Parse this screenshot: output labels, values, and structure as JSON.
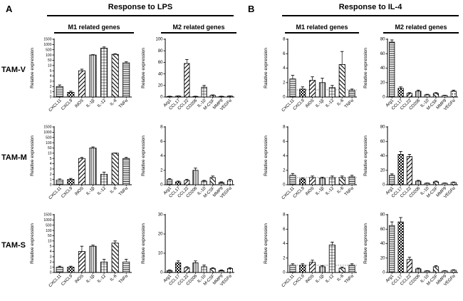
{
  "figure": {
    "panels": [
      {
        "label": "A",
        "title": "Response to LPS",
        "columns": [
          "M1 related genes",
          "M2 related genes"
        ]
      },
      {
        "label": "B",
        "title": "Response to IL-4",
        "columns": [
          "M1 related genes",
          "M2 related genes"
        ]
      }
    ],
    "rows": [
      "TAM-V",
      "TAM-M",
      "TAM-S"
    ],
    "ylabel": "Relative expression",
    "m1_genes": [
      "CXCL11",
      "CXCL9",
      "iNOS",
      "IL-1β",
      "IL-12",
      "IL-6",
      "TNFα"
    ],
    "m2_genes": [
      "Arg1",
      "CCL17",
      "CCL22",
      "CD206",
      "IL-10",
      "M-CSF",
      "MMP9",
      "VEGFα"
    ]
  },
  "chart_data": [
    {
      "type": "bar",
      "panel": "A",
      "row": "TAM-V",
      "gene_set": "M1 related genes",
      "ylabel": "Relative expression",
      "categories": [
        "CXCL11",
        "CXCL9",
        "iNOS",
        "IL-1β",
        "IL-12",
        "IL-6",
        "TNFα"
      ],
      "values": [
        2,
        0.9,
        5,
        100,
        650,
        150,
        30
      ],
      "errors": [
        0.3,
        0.2,
        1.5,
        25,
        120,
        40,
        8
      ],
      "yticks": [
        0,
        1,
        2,
        3,
        4,
        5,
        10,
        50,
        100,
        500,
        1000,
        1500
      ]
    },
    {
      "type": "bar",
      "panel": "A",
      "row": "TAM-V",
      "gene_set": "M2 related genes",
      "ylabel": "Relative expression",
      "categories": [
        "Arg1",
        "CCL17",
        "CCL22",
        "CD206",
        "IL-10",
        "M-CSF",
        "MMP9",
        "VEGFα"
      ],
      "values": [
        1,
        1.5,
        58,
        1,
        17,
        3,
        1,
        1.5
      ],
      "errors": [
        0.3,
        0.4,
        7,
        0.3,
        3,
        0.6,
        0.3,
        0.4
      ],
      "yticks": [
        0,
        20,
        40,
        60,
        80,
        100
      ]
    },
    {
      "type": "bar",
      "panel": "B",
      "row": "TAM-V",
      "gene_set": "M1 related genes",
      "ylabel": "Ralative expression",
      "categories": [
        "CXCL11",
        "CXCL9",
        "iNOS",
        "IL-1β",
        "IL-12",
        "IL-6",
        "TNFα"
      ],
      "values": [
        2.5,
        1.1,
        2.3,
        2.0,
        1.3,
        4.5,
        0.9
      ],
      "errors": [
        0.5,
        0.3,
        0.5,
        0.6,
        0.3,
        1.8,
        0.2
      ],
      "yticks": [
        0,
        2,
        4,
        6,
        8
      ],
      "refline": 1
    },
    {
      "type": "bar",
      "panel": "B",
      "row": "TAM-V",
      "gene_set": "M2 related genes",
      "ylabel": "Relative expression",
      "categories": [
        "Arg1",
        "CCL17",
        "CCL22",
        "CD206",
        "IL-10",
        "M-CSF",
        "MMP9",
        "VEGFα"
      ],
      "values": [
        76,
        12,
        5,
        8,
        3,
        5,
        2,
        8
      ],
      "errors": [
        3,
        2,
        1,
        1.5,
        0.8,
        1,
        0.5,
        1.5
      ],
      "yticks": [
        0,
        20,
        40,
        60,
        80
      ]
    },
    {
      "type": "bar",
      "panel": "A",
      "row": "TAM-M",
      "gene_set": "M1 related genes",
      "ylabel": "Relative expression",
      "categories": [
        "CXCL11",
        "CXCL9",
        "iNOS",
        "IL-1β",
        "IL-12",
        "IL-6",
        "TNFα"
      ],
      "values": [
        0.9,
        1,
        5,
        50,
        2,
        10,
        5
      ],
      "errors": [
        0.2,
        0.2,
        1,
        10,
        0.4,
        2,
        1
      ],
      "yticks": [
        0,
        1,
        2,
        3,
        4,
        5,
        10,
        50,
        100,
        500,
        1000,
        1500
      ]
    },
    {
      "type": "bar",
      "panel": "A",
      "row": "TAM-M",
      "gene_set": "M2 related genes",
      "ylabel": "Relative expression",
      "categories": [
        "Arg1",
        "CCL17",
        "CCL22",
        "CD206",
        "IL-10",
        "M-CSF",
        "MMP9",
        "VEGFα"
      ],
      "values": [
        0.7,
        0.4,
        0.6,
        2.0,
        0.5,
        1.0,
        0.3,
        0.6
      ],
      "errors": [
        0.15,
        0.1,
        0.15,
        0.3,
        0.1,
        0.2,
        0.1,
        0.15
      ],
      "yticks": [
        0,
        2,
        4,
        6,
        8
      ]
    },
    {
      "type": "bar",
      "panel": "B",
      "row": "TAM-M",
      "gene_set": "M1 related genes",
      "ylabel": "Relative expression",
      "categories": [
        "CXCL11",
        "CXCL9",
        "iNOS",
        "IL-1β",
        "IL-12",
        "IL-6",
        "TNFα"
      ],
      "values": [
        1.3,
        0.8,
        1.0,
        0.9,
        1.0,
        1.0,
        1.1
      ],
      "errors": [
        0.25,
        0.15,
        0.2,
        0.15,
        0.2,
        0.2,
        0.2
      ],
      "yticks": [
        0,
        2,
        4,
        6,
        8
      ],
      "refline": 1
    },
    {
      "type": "bar",
      "panel": "B",
      "row": "TAM-M",
      "gene_set": "M2 related genes",
      "ylabel": "Relative expression",
      "categories": [
        "Arg1",
        "CCL17",
        "CCL22",
        "CD206",
        "IL-10",
        "M-CSF",
        "MMP9",
        "VEGFα"
      ],
      "values": [
        13,
        42,
        39,
        5,
        2,
        4,
        2,
        3
      ],
      "errors": [
        2,
        4,
        3,
        1,
        0.5,
        1,
        0.5,
        0.8
      ],
      "yticks": [
        0,
        20,
        40,
        60,
        80
      ]
    },
    {
      "type": "bar",
      "panel": "A",
      "row": "TAM-S",
      "gene_set": "M1 related genes",
      "ylabel": "Relative expression",
      "categories": [
        "CXCL11",
        "CXCL9",
        "iNOS",
        "IL-1β",
        "IL-12",
        "IL-6",
        "TNFα"
      ],
      "values": [
        1,
        1,
        4,
        5,
        2,
        8,
        2
      ],
      "errors": [
        0.2,
        0.2,
        1,
        1,
        0.5,
        2,
        0.5
      ],
      "yticks": [
        0,
        1,
        2,
        3,
        4,
        5,
        10,
        50,
        100,
        500,
        1000,
        1500
      ]
    },
    {
      "type": "bar",
      "panel": "A",
      "row": "TAM-S",
      "gene_set": "M2 related genes",
      "ylabel": "Relative expression",
      "categories": [
        "Arg1",
        "CCL17",
        "CCL22",
        "CD206",
        "IL-10",
        "M-CSF",
        "MMP9",
        "VEGFα"
      ],
      "values": [
        1,
        5,
        2.5,
        5,
        3,
        2,
        1,
        2
      ],
      "errors": [
        0.3,
        1,
        0.5,
        1,
        0.8,
        0.5,
        0.3,
        0.5
      ],
      "yticks": [
        0,
        10,
        20,
        30
      ]
    },
    {
      "type": "bar",
      "panel": "B",
      "row": "TAM-S",
      "gene_set": "M1 related genes",
      "ylabel": "Relative expression",
      "categories": [
        "CXCL11",
        "CXCL9",
        "iNOS",
        "IL-1β",
        "IL-12",
        "IL-6",
        "TNFα"
      ],
      "values": [
        1.0,
        1.0,
        1.4,
        0.8,
        3.8,
        0.6,
        1.0
      ],
      "errors": [
        0.2,
        0.2,
        0.3,
        0.15,
        0.4,
        0.15,
        0.2
      ],
      "yticks": [
        0,
        2,
        4,
        6,
        8
      ],
      "refline": 1
    },
    {
      "type": "bar",
      "panel": "B",
      "row": "TAM-S",
      "gene_set": "M2 related genes",
      "ylabel": "Relative expression",
      "categories": [
        "Arg1",
        "CCL17",
        "CCL22",
        "CD206",
        "IL-10",
        "M-CSF",
        "MMP9",
        "VEGFα"
      ],
      "values": [
        65,
        70,
        18,
        5,
        2,
        8,
        2,
        3
      ],
      "errors": [
        5,
        6,
        3,
        1,
        0.5,
        1.5,
        0.5,
        0.8
      ],
      "yticks": [
        0,
        20,
        40,
        60,
        80
      ]
    }
  ]
}
